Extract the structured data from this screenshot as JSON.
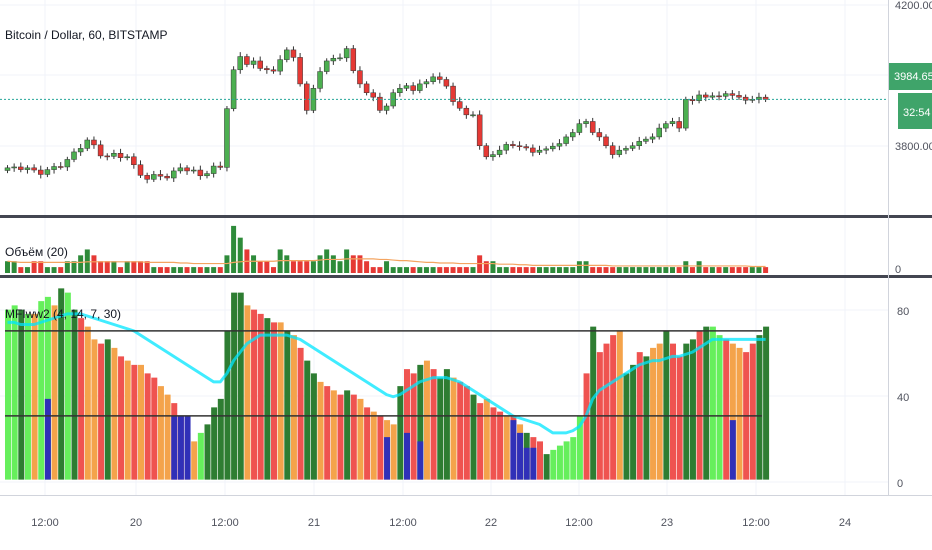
{
  "colors": {
    "up": "#4caf50",
    "down": "#e53935",
    "price_line": "#26a69a",
    "volume_ma": "#f4a460",
    "mfi_line": "#00e5ff",
    "level_line": "#333333",
    "price_tag": "#3fa46a",
    "bar_palette": [
      "#2e7d32",
      "#66ef5c",
      "#f4a34b",
      "#ef5350",
      "#3030b8"
    ]
  },
  "price_pane": {
    "title": "Bitcoin / Dollar, 60, BITSTAMP",
    "last_price": "3984.65",
    "countdown": "32:54",
    "y_ticks": [
      "4200.00",
      "3800.00"
    ],
    "ylim": [
      3730,
      4210
    ]
  },
  "volume_pane": {
    "title": "Объём (20)",
    "y_ticks": [
      "0"
    ]
  },
  "indicator_pane": {
    "title": "MFIww2 (4, 14, 7, 30)",
    "y_ticks": [
      "80",
      "40",
      "0"
    ],
    "ylim": [
      -3,
      93
    ],
    "levels": [
      70,
      30
    ]
  },
  "x_axis": {
    "ticks": [
      "12:00",
      "20",
      "12:00",
      "21",
      "12:00",
      "22",
      "12:00",
      "23",
      "12:00",
      "24"
    ]
  },
  "chart_data": [
    {
      "type": "candlestick",
      "title": "Bitcoin / Dollar, 60, BITSTAMP",
      "close": [
        3830,
        3832,
        3826,
        3830,
        3825,
        3815,
        3826,
        3833,
        3832,
        3849,
        3866,
        3874,
        3893,
        3882,
        3857,
        3856,
        3863,
        3853,
        3855,
        3837,
        3813,
        3804,
        3815,
        3811,
        3807,
        3823,
        3830,
        3823,
        3825,
        3812,
        3817,
        3834,
        3831,
        3964,
        4052,
        4082,
        4064,
        4072,
        4055,
        4052,
        4049,
        4075,
        4097,
        4080,
        4020,
        3960,
        4010,
        4048,
        4072,
        4078,
        4079,
        4100,
        4050,
        4020,
        4000,
        3990,
        3960,
        3970,
        4000,
        4010,
        4016,
        4005,
        4020,
        4025,
        4036,
        4030,
        4015,
        3980,
        3965,
        3950,
        3950,
        3880,
        3855,
        3860,
        3870,
        3883,
        3880,
        3878,
        3875,
        3865,
        3870,
        3873,
        3879,
        3885,
        3900,
        3910,
        3930,
        3935,
        3910,
        3900,
        3880,
        3860,
        3870,
        3874,
        3880,
        3890,
        3895,
        3900,
        3920,
        3930,
        3935,
        3920,
        3985,
        3982,
        3995,
        3990,
        3993,
        3992,
        3998,
        3994,
        3990,
        3983,
        3985,
        3990,
        3985
      ]
    },
    {
      "type": "bar",
      "title": "Объём (20)",
      "values": [
        2,
        2,
        1,
        1,
        2,
        2,
        1,
        1,
        1,
        2,
        2,
        3,
        4,
        3,
        2,
        2,
        2,
        1,
        2,
        2,
        2,
        2,
        1,
        1,
        1,
        1,
        1,
        1,
        1,
        1,
        1,
        1,
        1,
        3,
        8,
        6,
        4,
        3,
        2,
        2,
        1,
        4,
        3,
        2,
        2,
        2,
        2,
        3,
        4,
        3,
        2,
        4,
        3,
        3,
        2,
        1,
        1,
        2,
        1,
        1,
        1,
        1,
        1,
        1,
        1,
        1,
        1,
        1,
        1,
        1,
        1,
        3,
        2,
        2,
        1,
        1,
        1,
        1,
        1,
        1,
        1,
        1,
        1,
        1,
        1,
        1,
        2,
        2,
        1,
        1,
        1,
        1,
        1,
        1,
        1,
        1,
        1,
        1,
        1,
        1,
        1,
        1,
        2,
        1,
        2,
        1,
        1,
        1,
        1,
        1,
        1,
        1,
        1,
        1,
        1
      ],
      "moving_average": [
        2.0,
        1.9,
        1.8,
        1.8,
        1.8,
        1.8,
        1.8,
        1.8,
        1.8,
        1.8,
        1.8,
        1.8,
        1.9,
        1.9,
        1.9,
        1.9,
        1.9,
        1.9,
        1.9,
        1.9,
        1.9,
        1.8,
        1.8,
        1.8,
        1.8,
        1.8,
        1.7,
        1.7,
        1.6,
        1.6,
        1.6,
        1.6,
        1.6,
        1.6,
        1.8,
        1.9,
        2.0,
        2.0,
        2.0,
        2.0,
        2.0,
        2.1,
        2.1,
        2.1,
        2.1,
        2.1,
        2.1,
        2.2,
        2.3,
        2.3,
        2.3,
        2.4,
        2.4,
        2.4,
        2.4,
        2.4,
        2.3,
        2.3,
        2.2,
        2.1,
        2.1,
        2.0,
        1.9,
        1.8,
        1.8,
        1.7,
        1.7,
        1.7,
        1.6,
        1.6,
        1.6,
        1.6,
        1.6,
        1.6,
        1.5,
        1.5,
        1.5,
        1.4,
        1.4,
        1.3,
        1.3,
        1.3,
        1.3,
        1.3,
        1.3,
        1.3,
        1.3,
        1.3,
        1.3,
        1.3,
        1.3,
        1.2,
        1.2,
        1.2,
        1.2,
        1.2,
        1.2,
        1.2,
        1.2,
        1.2,
        1.2,
        1.2,
        1.2,
        1.2,
        1.2,
        1.2,
        1.2,
        1.2,
        1.2,
        1.2,
        1.2,
        1.2,
        1.1,
        1.1,
        1.1
      ],
      "ylim": [
        0,
        9
      ]
    },
    {
      "type": "bar",
      "title": "MFIww2 (4, 14, 7, 30)",
      "values": [
        80,
        82,
        80,
        78,
        78,
        84,
        86,
        82,
        90,
        88,
        80,
        76,
        72,
        66,
        64,
        66,
        62,
        58,
        56,
        54,
        54,
        50,
        48,
        44,
        40,
        36,
        30,
        22,
        18,
        22,
        26,
        34,
        38,
        70,
        88,
        88,
        82,
        80,
        78,
        76,
        74,
        74,
        70,
        68,
        62,
        56,
        50,
        46,
        44,
        42,
        40,
        42,
        40,
        38,
        34,
        32,
        30,
        28,
        26,
        44,
        52,
        50,
        54,
        56,
        52,
        48,
        52,
        48,
        46,
        44,
        40,
        36,
        38,
        34,
        32,
        30,
        30,
        26,
        22,
        20,
        18,
        12,
        14,
        16,
        18,
        20,
        30,
        50,
        72,
        60,
        64,
        68,
        70,
        50,
        54,
        60,
        58,
        62,
        64,
        70,
        64,
        58,
        64,
        66,
        70,
        72,
        72,
        68,
        66,
        64,
        62,
        60,
        64,
        68,
        72
      ],
      "bar_colors": [
        1,
        1,
        0,
        1,
        2,
        1,
        1,
        2,
        0,
        1,
        0,
        3,
        2,
        2,
        3,
        0,
        2,
        3,
        2,
        3,
        2,
        3,
        3,
        2,
        2,
        3,
        3,
        2,
        2,
        1,
        0,
        0,
        0,
        0,
        0,
        0,
        2,
        3,
        3,
        0,
        3,
        2,
        0,
        2,
        3,
        0,
        0,
        2,
        3,
        2,
        3,
        0,
        3,
        2,
        3,
        2,
        3,
        2,
        2,
        0,
        3,
        3,
        0,
        2,
        3,
        0,
        0,
        2,
        3,
        3,
        0,
        3,
        2,
        3,
        3,
        2,
        3,
        2,
        0,
        3,
        3,
        0,
        1,
        1,
        1,
        1,
        1,
        3,
        0,
        3,
        3,
        3,
        2,
        0,
        0,
        3,
        0,
        2,
        2,
        0,
        3,
        3,
        0,
        0,
        3,
        0,
        1,
        1,
        3,
        2,
        2,
        3,
        3,
        0,
        0
      ],
      "blue_bars": [
        [
          6,
          38
        ],
        [
          25,
          30
        ],
        [
          26,
          30
        ],
        [
          27,
          30
        ],
        [
          57,
          20
        ],
        [
          60,
          22
        ],
        [
          62,
          18
        ],
        [
          76,
          28
        ],
        [
          77,
          22
        ],
        [
          78,
          15
        ],
        [
          79,
          15
        ],
        [
          109,
          28
        ]
      ],
      "mfi_signal": [
        74,
        74,
        73,
        73,
        73,
        74,
        75,
        76,
        77,
        78,
        78,
        78,
        77,
        76,
        75,
        74,
        73,
        72,
        71,
        70,
        68,
        66,
        64,
        62,
        60,
        58,
        56,
        54,
        52,
        50,
        48,
        46,
        46,
        50,
        56,
        60,
        64,
        66,
        68,
        68,
        68,
        68,
        68,
        67,
        66,
        64,
        62,
        60,
        58,
        56,
        54,
        52,
        50,
        48,
        46,
        44,
        42,
        40,
        39,
        40,
        42,
        44,
        46,
        47,
        48,
        48,
        48,
        47,
        46,
        44,
        42,
        40,
        38,
        36,
        34,
        32,
        30,
        29,
        28,
        27,
        26,
        24,
        22,
        22,
        22,
        23,
        25,
        30,
        38,
        42,
        44,
        46,
        48,
        50,
        52,
        54,
        55,
        56,
        56,
        57,
        58,
        58,
        59,
        60,
        62,
        64,
        66,
        66,
        66,
        66,
        66,
        66,
        66,
        66,
        66
      ],
      "levels": [
        70,
        30
      ],
      "ylim": [
        -3,
        93
      ]
    }
  ]
}
